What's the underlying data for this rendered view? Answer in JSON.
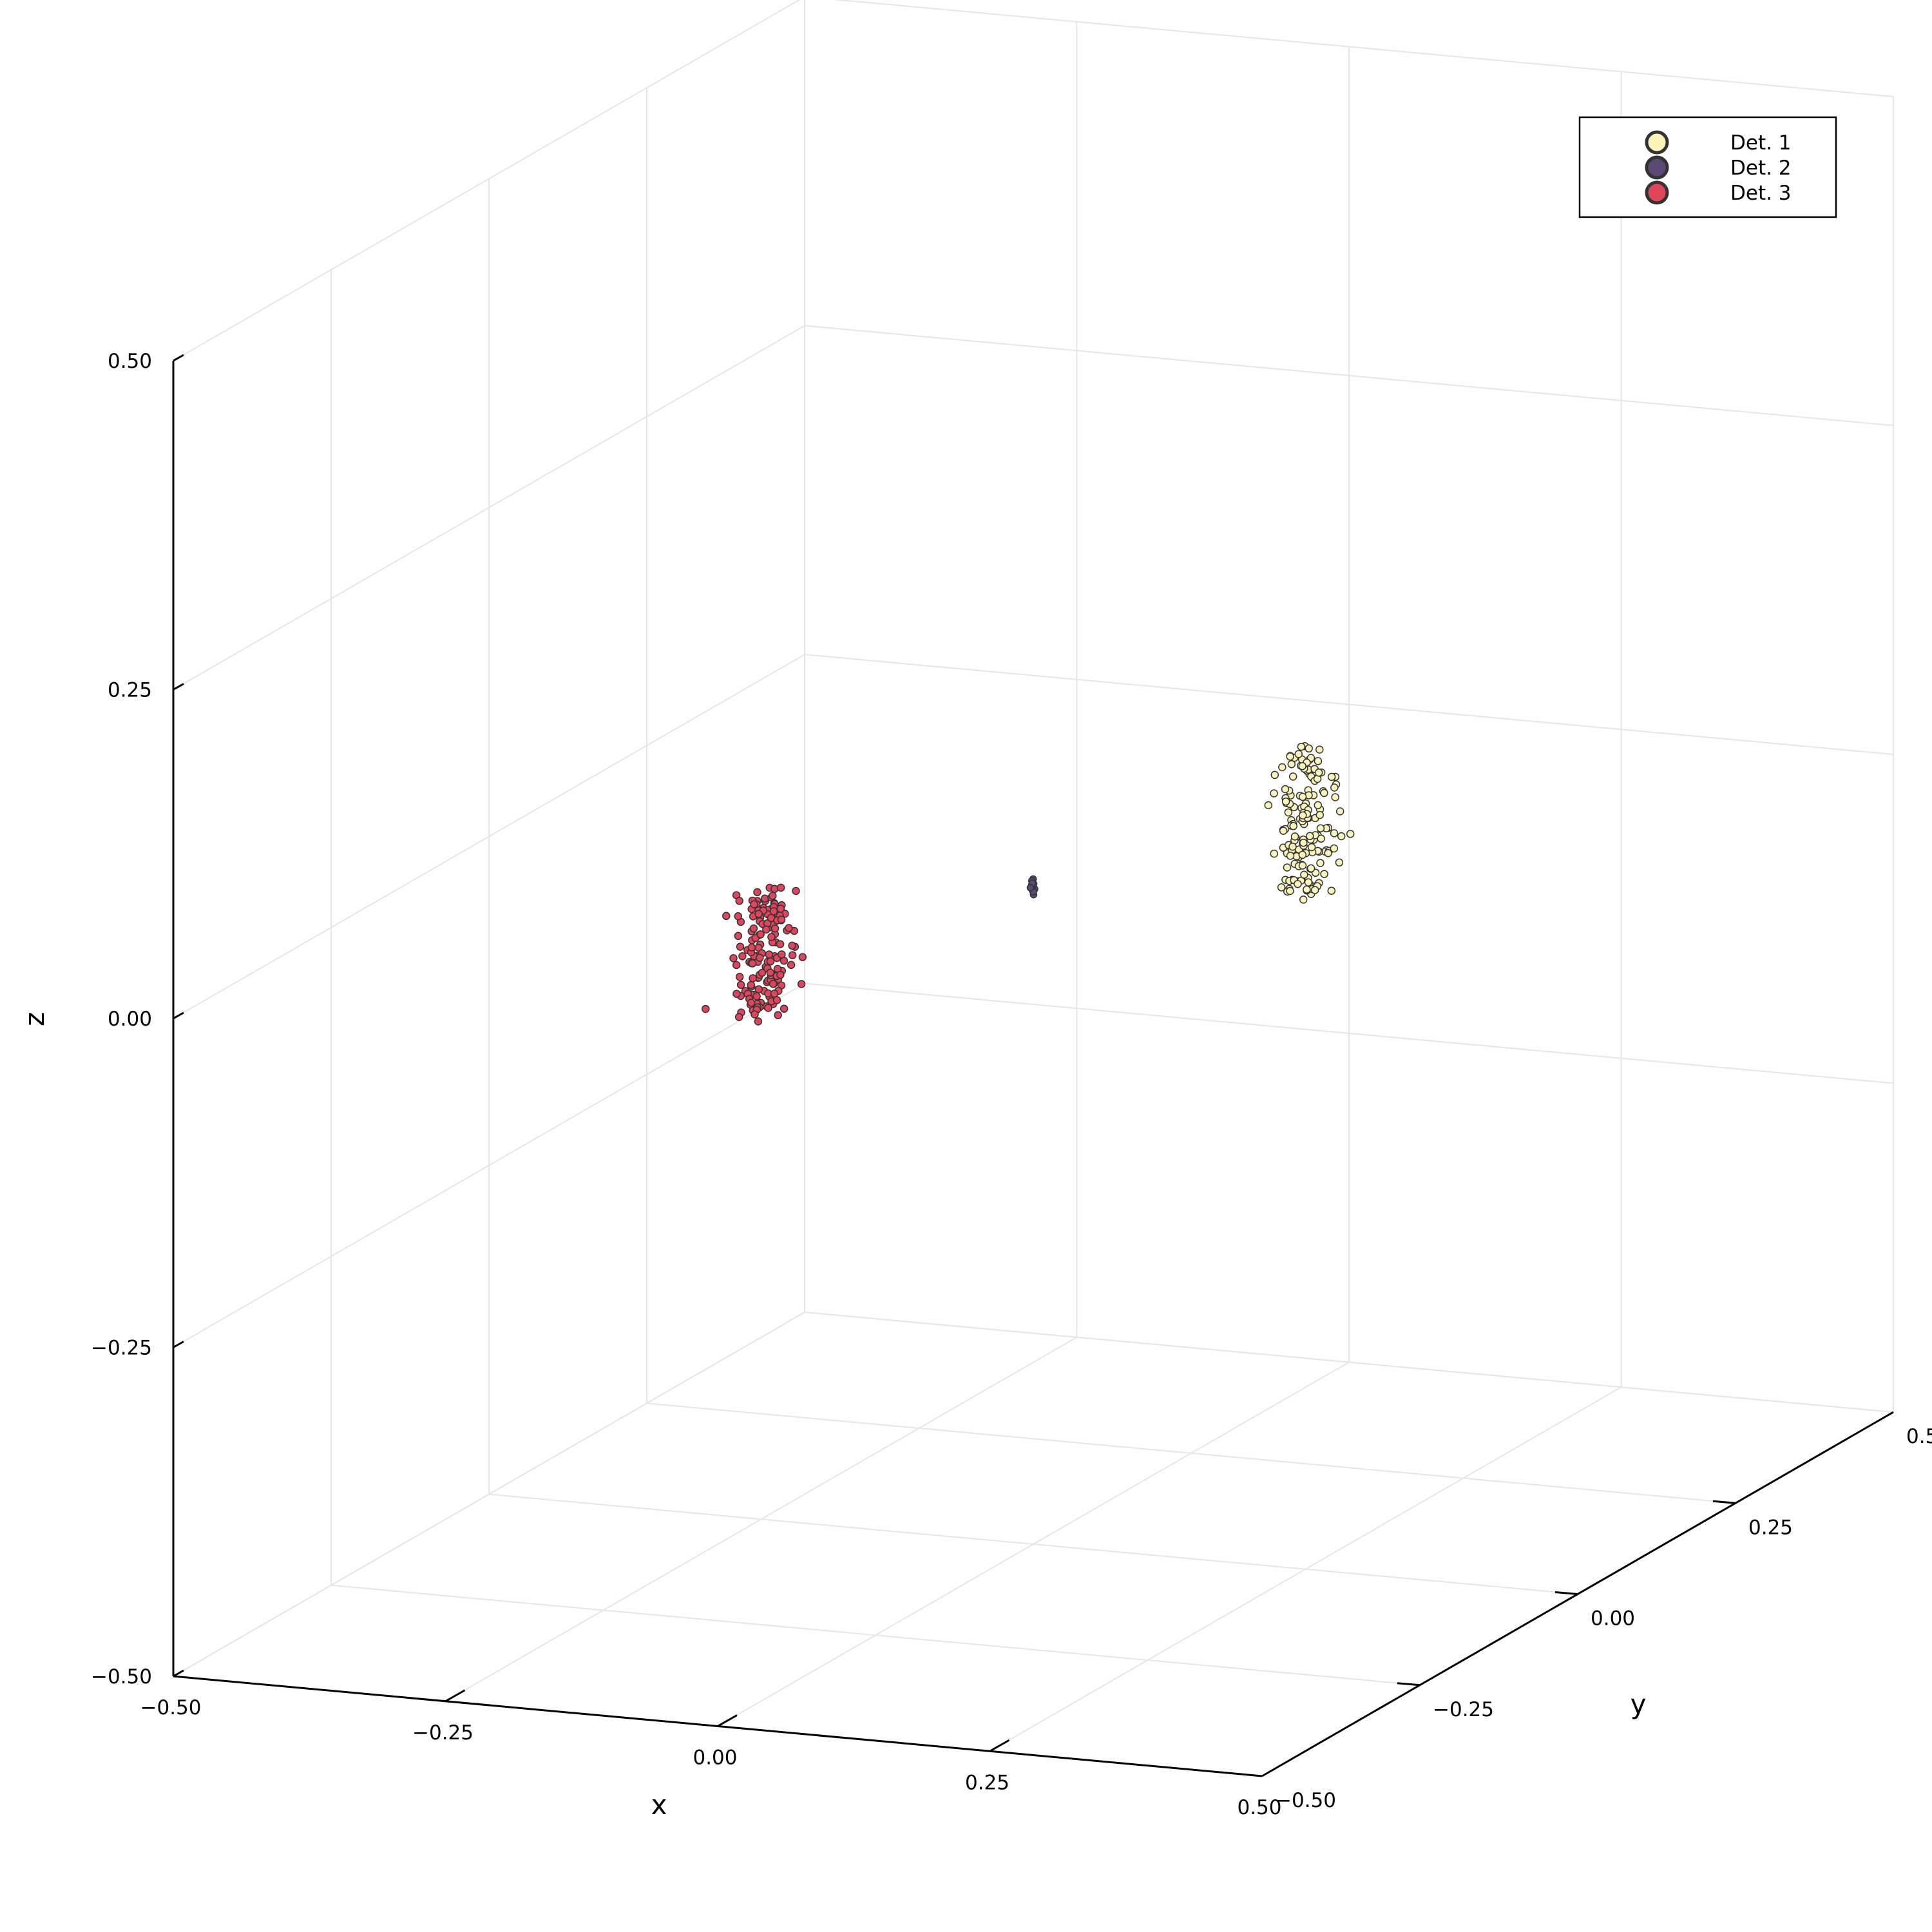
{
  "chart_data": {
    "type": "scatter",
    "title": "",
    "xlabel": "x",
    "ylabel": "y",
    "zlabel": "z",
    "xlim": [
      -0.5,
      0.5
    ],
    "ylim": [
      -0.5,
      0.5
    ],
    "zlim": [
      -0.5,
      0.5
    ],
    "x_ticks": [
      "−0.50",
      "−0.25",
      "0.00",
      "0.25",
      "0.50"
    ],
    "y_ticks": [
      "−0.50",
      "−0.25",
      "0.00",
      "0.25",
      "0.50"
    ],
    "z_ticks": [
      "−0.50",
      "−0.25",
      "0.00",
      "0.25",
      "0.50"
    ],
    "grid": true,
    "legend_position": "top-right",
    "series": [
      {
        "name": "Det. 1",
        "color": "#fcf5b9",
        "center": [
          0.18,
          0.12,
          0.03
        ],
        "spread": [
          0.012,
          0.012,
          0.035
        ],
        "count": 160
      },
      {
        "name": "Det. 2",
        "color": "#5a4a75",
        "center": [
          0.0,
          0.0,
          0.0
        ],
        "spread": [
          0.001,
          0.001,
          0.004
        ],
        "count": 12
      },
      {
        "name": "Det. 3",
        "color": "#e0455a",
        "center": [
          -0.18,
          -0.12,
          -0.03
        ],
        "spread": [
          0.012,
          0.012,
          0.03
        ],
        "count": 160
      }
    ]
  }
}
